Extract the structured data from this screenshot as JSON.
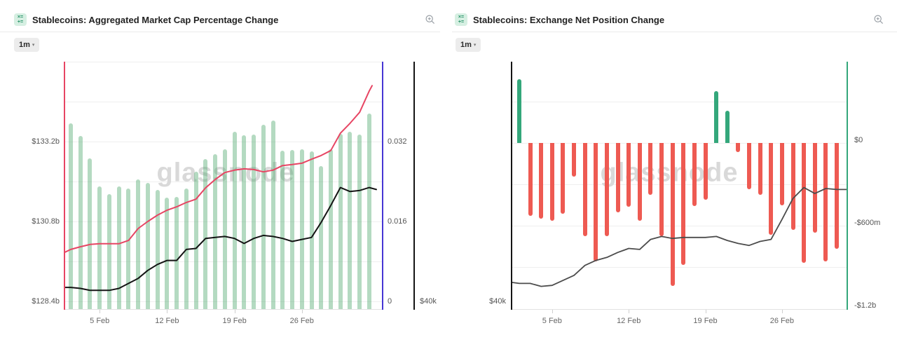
{
  "panels": [
    {
      "header": {
        "title": "Stablecoins: Aggregated Market Cap Percentage Change",
        "icon": "metric-calc-icon",
        "zoom_icon": "zoom-in-icon"
      },
      "toolbar": {
        "range_label": "1m"
      },
      "watermark": "glassnode",
      "chart_data": {
        "type": "bar+line",
        "x_tick_labels": [
          "5 Feb",
          "12 Feb",
          "19 Feb",
          "26 Feb"
        ],
        "x_tick_day_indices": [
          3,
          10,
          17,
          24
        ],
        "left_axis": {
          "tick_labels": [
            "$133.2b",
            "$130.8b",
            "$128.4b"
          ],
          "tick_values_billion": [
            133.2,
            130.8,
            128.4
          ],
          "color": "#e74563"
        },
        "right_axis": {
          "tick_labels": [
            "0.032",
            "0.016",
            "0"
          ],
          "tick_values": [
            0.032,
            0.016,
            0
          ],
          "color": "#4636d4"
        },
        "far_right_axis": {
          "tick_labels": [
            "$40k"
          ],
          "tick_values_k": [
            40
          ],
          "color": "#141414"
        },
        "bars": {
          "name": "aggregated-market-cap-bars",
          "color": "rgba(77,166,107,0.42)",
          "values_billion": [
            133.75,
            133.37,
            132.69,
            131.85,
            131.62,
            131.85,
            131.79,
            132.06,
            131.96,
            131.75,
            131.52,
            131.54,
            131.79,
            132.29,
            132.67,
            132.82,
            132.97,
            133.49,
            133.39,
            133.41,
            133.71,
            133.83,
            132.93,
            132.95,
            132.97,
            132.91,
            132.46,
            132.97,
            133.43,
            133.49,
            133.41,
            134.04
          ]
        },
        "series": [
          {
            "name": "market-cap-line",
            "axis": "left",
            "color": "#e74563",
            "start_value": 129.87,
            "values_billion": [
              129.96,
              130.04,
              130.11,
              130.13,
              130.13,
              130.13,
              130.23,
              130.59,
              130.8,
              130.99,
              131.14,
              131.24,
              131.37,
              131.47,
              131.81,
              132.06,
              132.27,
              132.34,
              132.38,
              132.36,
              132.29,
              132.34,
              132.48,
              132.51,
              132.55,
              132.67,
              132.78,
              132.93,
              133.45,
              133.75,
              134.08,
              134.72
            ],
            "end_value": 134.88
          },
          {
            "name": "btc-price-line",
            "axis": "far_right",
            "color": "#141414",
            "start_value": 41.4,
            "values_k": [
              41.4,
              41.3,
              41.1,
              41.1,
              41.1,
              41.3,
              41.8,
              42.3,
              43.1,
              43.7,
              44.1,
              44.1,
              45.2,
              45.3,
              46.3,
              46.4,
              46.5,
              46.3,
              45.8,
              46.3,
              46.6,
              46.5,
              46.3,
              46.0,
              46.2,
              46.4,
              47.9,
              49.6,
              51.4,
              51.0,
              51.1,
              51.4
            ],
            "end_value": 51.2
          }
        ]
      }
    },
    {
      "header": {
        "title": "Stablecoins: Exchange Net Position Change",
        "icon": "metric-calc-icon",
        "zoom_icon": "zoom-in-icon"
      },
      "toolbar": {
        "range_label": "1m"
      },
      "watermark": "glassnode",
      "chart_data": {
        "type": "bar+line",
        "x_tick_labels": [
          "5 Feb",
          "12 Feb",
          "19 Feb",
          "26 Feb"
        ],
        "x_tick_day_indices": [
          3,
          10,
          17,
          24
        ],
        "left_axis": {
          "tick_labels": [
            "$40k"
          ],
          "tick_values_k": [
            40
          ],
          "color": "#141414"
        },
        "right_axis": {
          "tick_labels": [
            "$0",
            "-$600m",
            "-$1.2b"
          ],
          "tick_values_million": [
            0,
            -600,
            -1200
          ],
          "color": "#34a77b"
        },
        "bars": {
          "name": "exchange-net-position-bars",
          "positive_color": "#34a77b",
          "negative_color": "#ee5a52",
          "values_million": [
            463,
            -529,
            -549,
            -564,
            -514,
            -244,
            -676,
            -859,
            -676,
            -503,
            -463,
            -564,
            -376,
            -676,
            -1037,
            -885,
            -458,
            -410,
            376,
            234,
            -66,
            -336,
            -376,
            -666,
            -453,
            -630,
            -869,
            -651,
            -859,
            -768
          ]
        },
        "series": [
          {
            "name": "btc-price-line",
            "axis": "left",
            "color": "#4c4c4c",
            "start_value": 41.9,
            "values_k": [
              41.8,
              41.8,
              41.5,
              41.6,
              42.1,
              42.6,
              43.6,
              44.1,
              44.4,
              44.9,
              45.3,
              45.2,
              46.2,
              46.5,
              46.3,
              46.4,
              46.4,
              46.4,
              46.5,
              46.1,
              45.8,
              45.6,
              46.0,
              46.2,
              48.2,
              50.3,
              51.4,
              50.8,
              51.3,
              51.2
            ],
            "end_value": 51.2
          }
        ]
      }
    }
  ]
}
